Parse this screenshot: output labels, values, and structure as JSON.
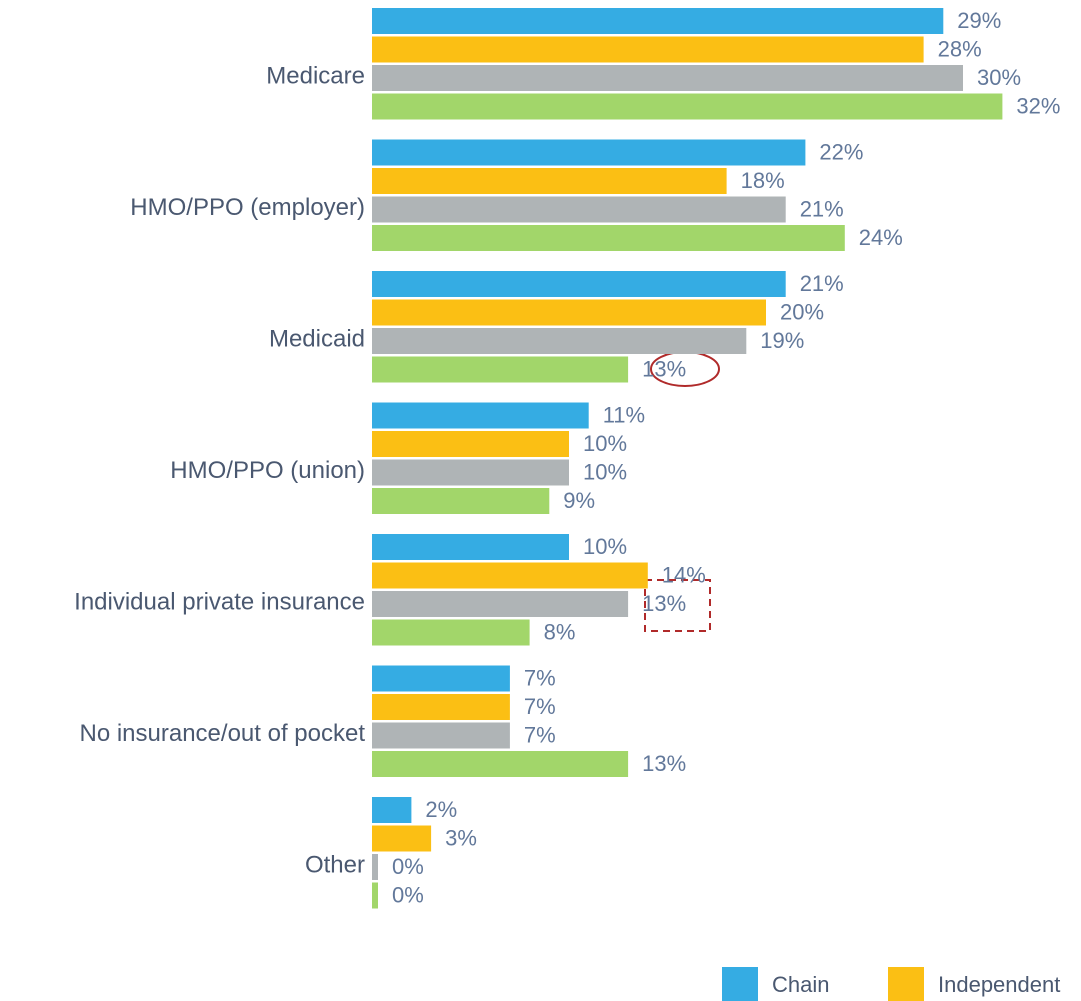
{
  "chart_data": {
    "type": "bar",
    "orientation": "horizontal",
    "categories": [
      "Medicare",
      "HMO/PPO (employer)",
      "Medicaid",
      "HMO/PPO (union)",
      "Individual private insurance",
      "No insurance/out of pocket",
      "Other"
    ],
    "series": [
      {
        "name": "Chain",
        "color": "#35ace3",
        "values": [
          29,
          22,
          21,
          11,
          10,
          7,
          2
        ],
        "value_labels": [
          "29%",
          "22%",
          "21%",
          "11%",
          "10%",
          "7%",
          "2%"
        ]
      },
      {
        "name": "Independent",
        "color": "#fbbf14",
        "values": [
          28,
          18,
          20,
          10,
          14,
          7,
          3
        ],
        "value_labels": [
          "28%",
          "18%",
          "20%",
          "10%",
          "14%",
          "7%",
          "3%"
        ]
      },
      {
        "color": "#afb4b6",
        "values": [
          30,
          21,
          19,
          10,
          13,
          7,
          0
        ],
        "value_labels": [
          "30%",
          "21%",
          "19%",
          "10%",
          "13%",
          "7%",
          "0%"
        ]
      },
      {
        "color": "#a2d66a",
        "values": [
          32,
          24,
          13,
          9,
          8,
          13,
          0
        ],
        "value_labels": [
          "32%",
          "24%",
          "13%",
          "9%",
          "8%",
          "13%",
          "0%"
        ]
      }
    ]
  }
}
